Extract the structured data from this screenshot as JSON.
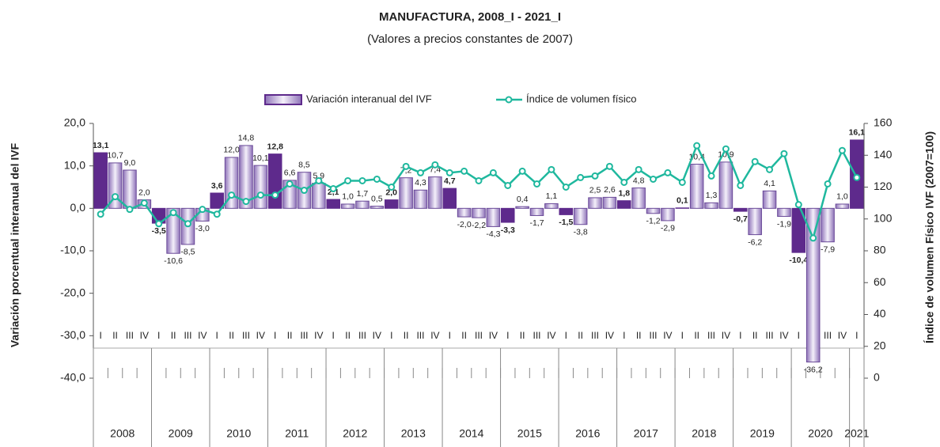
{
  "chart_data": {
    "type": "bar_line",
    "title": "MANUFACTURA, 2008_I - 2021_I",
    "subtitle": "(Valores a precios constantes de 2007)",
    "y_label": "Variación porcentual interanual del IVF",
    "y2_label": "Índice de volumen Físico IVF (2007=100)",
    "categories": [
      "I",
      "II",
      "III",
      "IV",
      "I",
      "II",
      "III",
      "IV",
      "I",
      "II",
      "III",
      "IV",
      "I",
      "II",
      "III",
      "IV",
      "I",
      "II",
      "III",
      "IV",
      "I",
      "II",
      "III",
      "IV",
      "I",
      "II",
      "III",
      "IV",
      "I",
      "II",
      "III",
      "IV",
      "I",
      "II",
      "III",
      "IV",
      "I",
      "II",
      "III",
      "IV",
      "I",
      "II",
      "III",
      "IV",
      "I",
      "II",
      "III",
      "IV",
      "I",
      "II",
      "III",
      "IV",
      "I"
    ],
    "years": [
      "2008",
      "2009",
      "2010",
      "2011",
      "2012",
      "2013",
      "2014",
      "2015",
      "2016",
      "2017",
      "2018",
      "2019",
      "2020",
      "2021"
    ],
    "ylim": [
      -40,
      20
    ],
    "yticks": [
      {
        "value": 20,
        "label": "20,0"
      },
      {
        "value": 10,
        "label": "10,0"
      },
      {
        "value": 0,
        "label": "0,0"
      },
      {
        "value": -10,
        "label": "-10,0"
      },
      {
        "value": -20,
        "label": "-20,0"
      },
      {
        "value": -30,
        "label": "-30,0"
      },
      {
        "value": -40,
        "label": "-40,0"
      }
    ],
    "y2lim": [
      0,
      160
    ],
    "y2ticks": [
      0,
      20,
      40,
      60,
      80,
      100,
      120,
      140,
      160
    ],
    "legend": "top",
    "series": [
      {
        "name": "Variación interanual del IVF",
        "type": "bar",
        "color": "#b8a6d6",
        "highlight_color": "#5e2a8c",
        "highlight_category": "I",
        "values": [
          13.1,
          10.7,
          9.0,
          2.0,
          -3.5,
          -10.6,
          -8.5,
          -3.0,
          3.6,
          12.0,
          14.8,
          10.1,
          12.8,
          6.6,
          8.5,
          5.9,
          2.1,
          1.0,
          1.7,
          0.5,
          2.0,
          7.2,
          4.3,
          7.4,
          4.7,
          -2.0,
          -2.2,
          -4.3,
          -3.3,
          0.4,
          -1.7,
          1.1,
          -1.5,
          -3.8,
          2.5,
          2.6,
          1.8,
          4.8,
          -1.2,
          -2.9,
          0.1,
          10.4,
          1.3,
          10.9,
          -0.7,
          -6.2,
          4.1,
          -1.9,
          -10.4,
          -36.2,
          -7.9,
          1.0,
          16.1
        ],
        "value_labels": [
          "13,1",
          "10,7",
          "9,0",
          "2,0",
          "-3,5",
          "-10,6",
          "-8,5",
          "-3,0",
          "3,6",
          "12,0",
          "14,8",
          "10,1",
          "12,8",
          "6,6",
          "8,5",
          "5,9",
          "2,1",
          "1,0",
          "1,7",
          "0,5",
          "2,0",
          "7,2",
          "4,3",
          "7,4",
          "4,7",
          "-2,0",
          "-2,2",
          "-4,3",
          "-3,3",
          "0,4",
          "-1,7",
          "1,1",
          "-1,5",
          "-3,8",
          "2,5",
          "2,6",
          "1,8",
          "4,8",
          "-1,2",
          "-2,9",
          "0,1",
          "10,4",
          "1,3",
          "10,9",
          "-0,7",
          "-6,2",
          "4,1",
          "-1,9",
          "-10,4",
          "-36,2",
          "-7,9",
          "1,0",
          "16,1"
        ]
      },
      {
        "name": "Índice de volumen físico",
        "type": "line",
        "axis": "y2",
        "color": "#1fb89e",
        "values": [
          103,
          114,
          106,
          110,
          97,
          104,
          97,
          106,
          103,
          115,
          111,
          115,
          115,
          122,
          118,
          124,
          119,
          124,
          124,
          125,
          120,
          133,
          129,
          134,
          129,
          130,
          124,
          129,
          121,
          130,
          122,
          131,
          120,
          126,
          127,
          133,
          123,
          131,
          125,
          129,
          123,
          146,
          127,
          144,
          121,
          136,
          131,
          141,
          109,
          88,
          122,
          143,
          126
        ]
      }
    ]
  }
}
